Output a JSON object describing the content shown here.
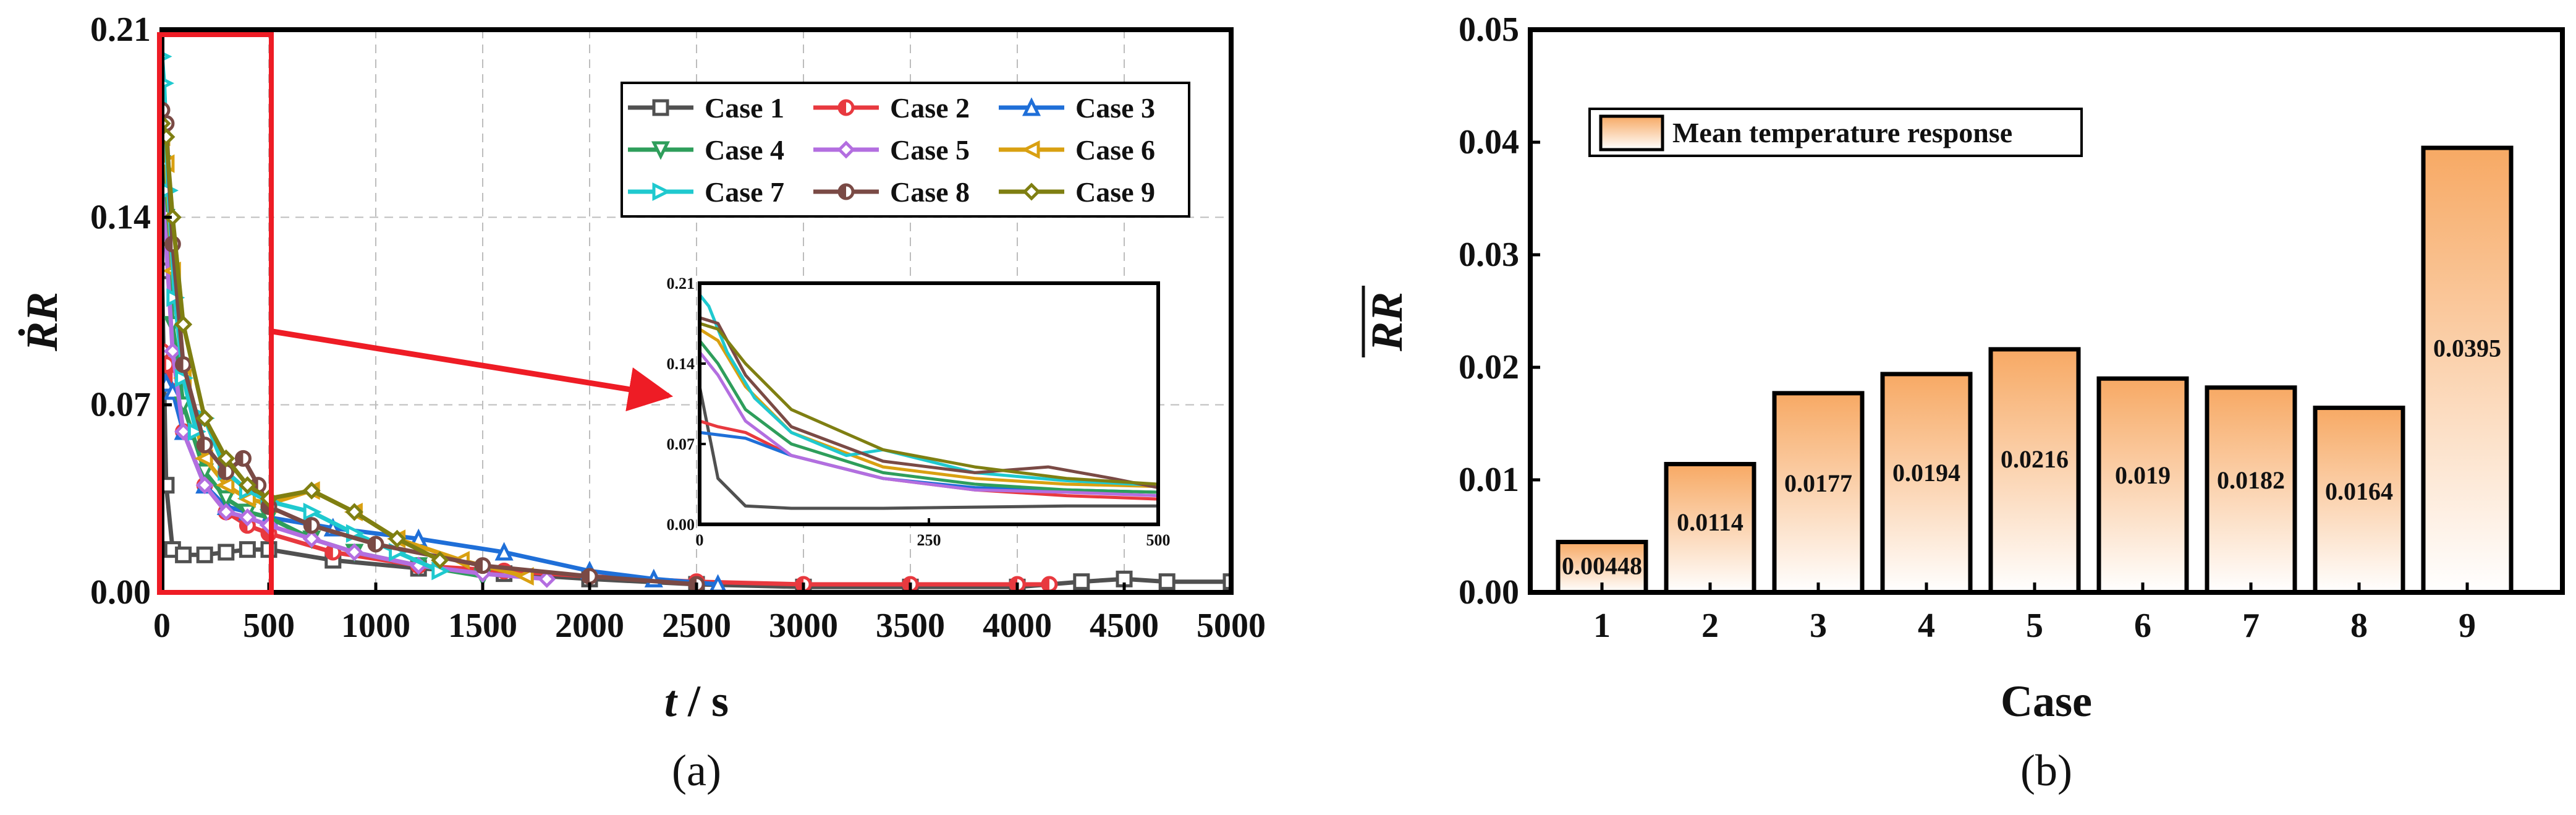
{
  "panel_labels": {
    "a": "(a)",
    "b": "(b)"
  },
  "colors": {
    "case1": "#505050",
    "case2": "#e8393f",
    "case3": "#1f6fd8",
    "case4": "#2e9e5b",
    "case5": "#b36ee0",
    "case6": "#d9a011",
    "case7": "#1fc9cf",
    "case8": "#7a4a45",
    "case9": "#7f7f12",
    "highlight": "#ee1c25",
    "bar_top": "#f7a964",
    "bar_bottom": "#ffffff"
  },
  "chart_data": [
    {
      "type": "line",
      "panel": "(a)",
      "ylabel": "ṘR",
      "xlabel_main": "t",
      "xlabel_unit": " / s",
      "xlim": [
        0,
        5000
      ],
      "ylim": [
        0,
        0.21
      ],
      "xticks": [
        0,
        500,
        1000,
        1500,
        2000,
        2500,
        3000,
        3500,
        4000,
        4500,
        5000
      ],
      "yticks": [
        0.0,
        0.07,
        0.14,
        0.21
      ],
      "ytick_labels": [
        "0.00",
        "0.07",
        "0.14",
        "0.21"
      ],
      "grid": true,
      "legend_position": "top-right",
      "highlight_region": {
        "x": [
          0,
          500
        ],
        "y": [
          0,
          0.21
        ]
      },
      "series": [
        {
          "name": "Case 1",
          "marker": "square",
          "x": [
            0,
            20,
            50,
            100,
            200,
            300,
            400,
            500,
            800,
            1200,
            1600,
            2000,
            2500,
            3000,
            3500,
            4000,
            4300,
            4500,
            4700,
            5000
          ],
          "y": [
            0.12,
            0.04,
            0.016,
            0.014,
            0.014,
            0.015,
            0.016,
            0.016,
            0.012,
            0.009,
            0.007,
            0.005,
            0.003,
            0.002,
            0.002,
            0.002,
            0.004,
            0.005,
            0.004,
            0.004
          ]
        },
        {
          "name": "Case 2",
          "marker": "circle-half",
          "x": [
            0,
            20,
            50,
            100,
            200,
            300,
            400,
            500,
            800,
            1200,
            1600,
            2000,
            2500,
            3000,
            3500,
            4000,
            4150
          ],
          "y": [
            0.09,
            0.085,
            0.08,
            0.06,
            0.04,
            0.03,
            0.025,
            0.022,
            0.015,
            0.01,
            0.008,
            0.006,
            0.004,
            0.003,
            0.003,
            0.003,
            0.003
          ]
        },
        {
          "name": "Case 3",
          "marker": "triangle-up",
          "x": [
            0,
            20,
            50,
            100,
            200,
            300,
            400,
            500,
            800,
            1200,
            1600,
            2000,
            2300,
            2600
          ],
          "y": [
            0.08,
            0.078,
            0.075,
            0.06,
            0.04,
            0.032,
            0.03,
            0.028,
            0.024,
            0.02,
            0.015,
            0.008,
            0.005,
            0.003
          ]
        },
        {
          "name": "Case 4",
          "marker": "triangle-down",
          "x": [
            0,
            20,
            50,
            100,
            200,
            300,
            400,
            500,
            700,
            900,
            1200,
            1500
          ],
          "y": [
            0.16,
            0.14,
            0.1,
            0.07,
            0.045,
            0.035,
            0.03,
            0.028,
            0.02,
            0.015,
            0.01,
            0.006
          ]
        },
        {
          "name": "Case 5",
          "marker": "diamond",
          "x": [
            0,
            20,
            50,
            100,
            200,
            300,
            400,
            500,
            700,
            900,
            1200,
            1500,
            1800
          ],
          "y": [
            0.15,
            0.13,
            0.09,
            0.06,
            0.04,
            0.03,
            0.028,
            0.025,
            0.02,
            0.015,
            0.01,
            0.007,
            0.005
          ]
        },
        {
          "name": "Case 6",
          "marker": "triangle-left",
          "x": [
            0,
            20,
            50,
            100,
            200,
            300,
            400,
            500,
            700,
            900,
            1100,
            1400,
            1700
          ],
          "y": [
            0.17,
            0.16,
            0.12,
            0.08,
            0.05,
            0.04,
            0.035,
            0.033,
            0.038,
            0.03,
            0.02,
            0.012,
            0.006
          ]
        },
        {
          "name": "Case 7",
          "marker": "triangle-right",
          "x": [
            0,
            10,
            30,
            60,
            100,
            160,
            200,
            300,
            400,
            500,
            700,
            900,
            1100,
            1300
          ],
          "y": [
            0.2,
            0.19,
            0.15,
            0.11,
            0.08,
            0.06,
            0.065,
            0.045,
            0.038,
            0.034,
            0.03,
            0.022,
            0.015,
            0.008
          ]
        },
        {
          "name": "Case 8",
          "marker": "circle-half",
          "x": [
            0,
            20,
            50,
            100,
            200,
            300,
            380,
            450,
            500,
            700,
            1000,
            1500,
            2000,
            2500
          ],
          "y": [
            0.18,
            0.175,
            0.13,
            0.085,
            0.055,
            0.045,
            0.05,
            0.04,
            0.032,
            0.025,
            0.018,
            0.01,
            0.006,
            0.003
          ]
        },
        {
          "name": "Case 9",
          "marker": "diamond",
          "x": [
            0,
            20,
            50,
            100,
            200,
            300,
            400,
            500,
            700,
            900,
            1100,
            1300
          ],
          "y": [
            0.175,
            0.17,
            0.14,
            0.1,
            0.065,
            0.05,
            0.04,
            0.035,
            0.038,
            0.03,
            0.02,
            0.012
          ]
        }
      ],
      "inset": {
        "xlim": [
          0,
          500
        ],
        "ylim": [
          0,
          0.21
        ],
        "xticks": [
          0,
          250,
          500
        ],
        "yticks": [
          0.0,
          0.07,
          0.14,
          0.21
        ],
        "ytick_labels": [
          "0.00",
          "0.07",
          "0.14",
          "0.21"
        ]
      }
    },
    {
      "type": "bar",
      "panel": "(b)",
      "xlabel": "Case",
      "ylabel": "RR",
      "categories": [
        "1",
        "2",
        "3",
        "4",
        "5",
        "6",
        "7",
        "8",
        "9"
      ],
      "series": [
        {
          "name": "Mean temperature response",
          "values": [
            0.00448,
            0.0114,
            0.0177,
            0.0194,
            0.0216,
            0.019,
            0.0182,
            0.0164,
            0.0395
          ]
        }
      ],
      "value_labels": [
        "0.00448",
        "0.0114",
        "0.0177",
        "0.0194",
        "0.0216",
        "0.019",
        "0.0182",
        "0.0164",
        "0.0395"
      ],
      "ylim": [
        0,
        0.05
      ],
      "yticks": [
        0.0,
        0.01,
        0.02,
        0.03,
        0.04,
        0.05
      ],
      "ytick_labels": [
        "0.00",
        "0.01",
        "0.02",
        "0.03",
        "0.04",
        "0.05"
      ],
      "grid": false,
      "legend_position": "top-left"
    }
  ]
}
